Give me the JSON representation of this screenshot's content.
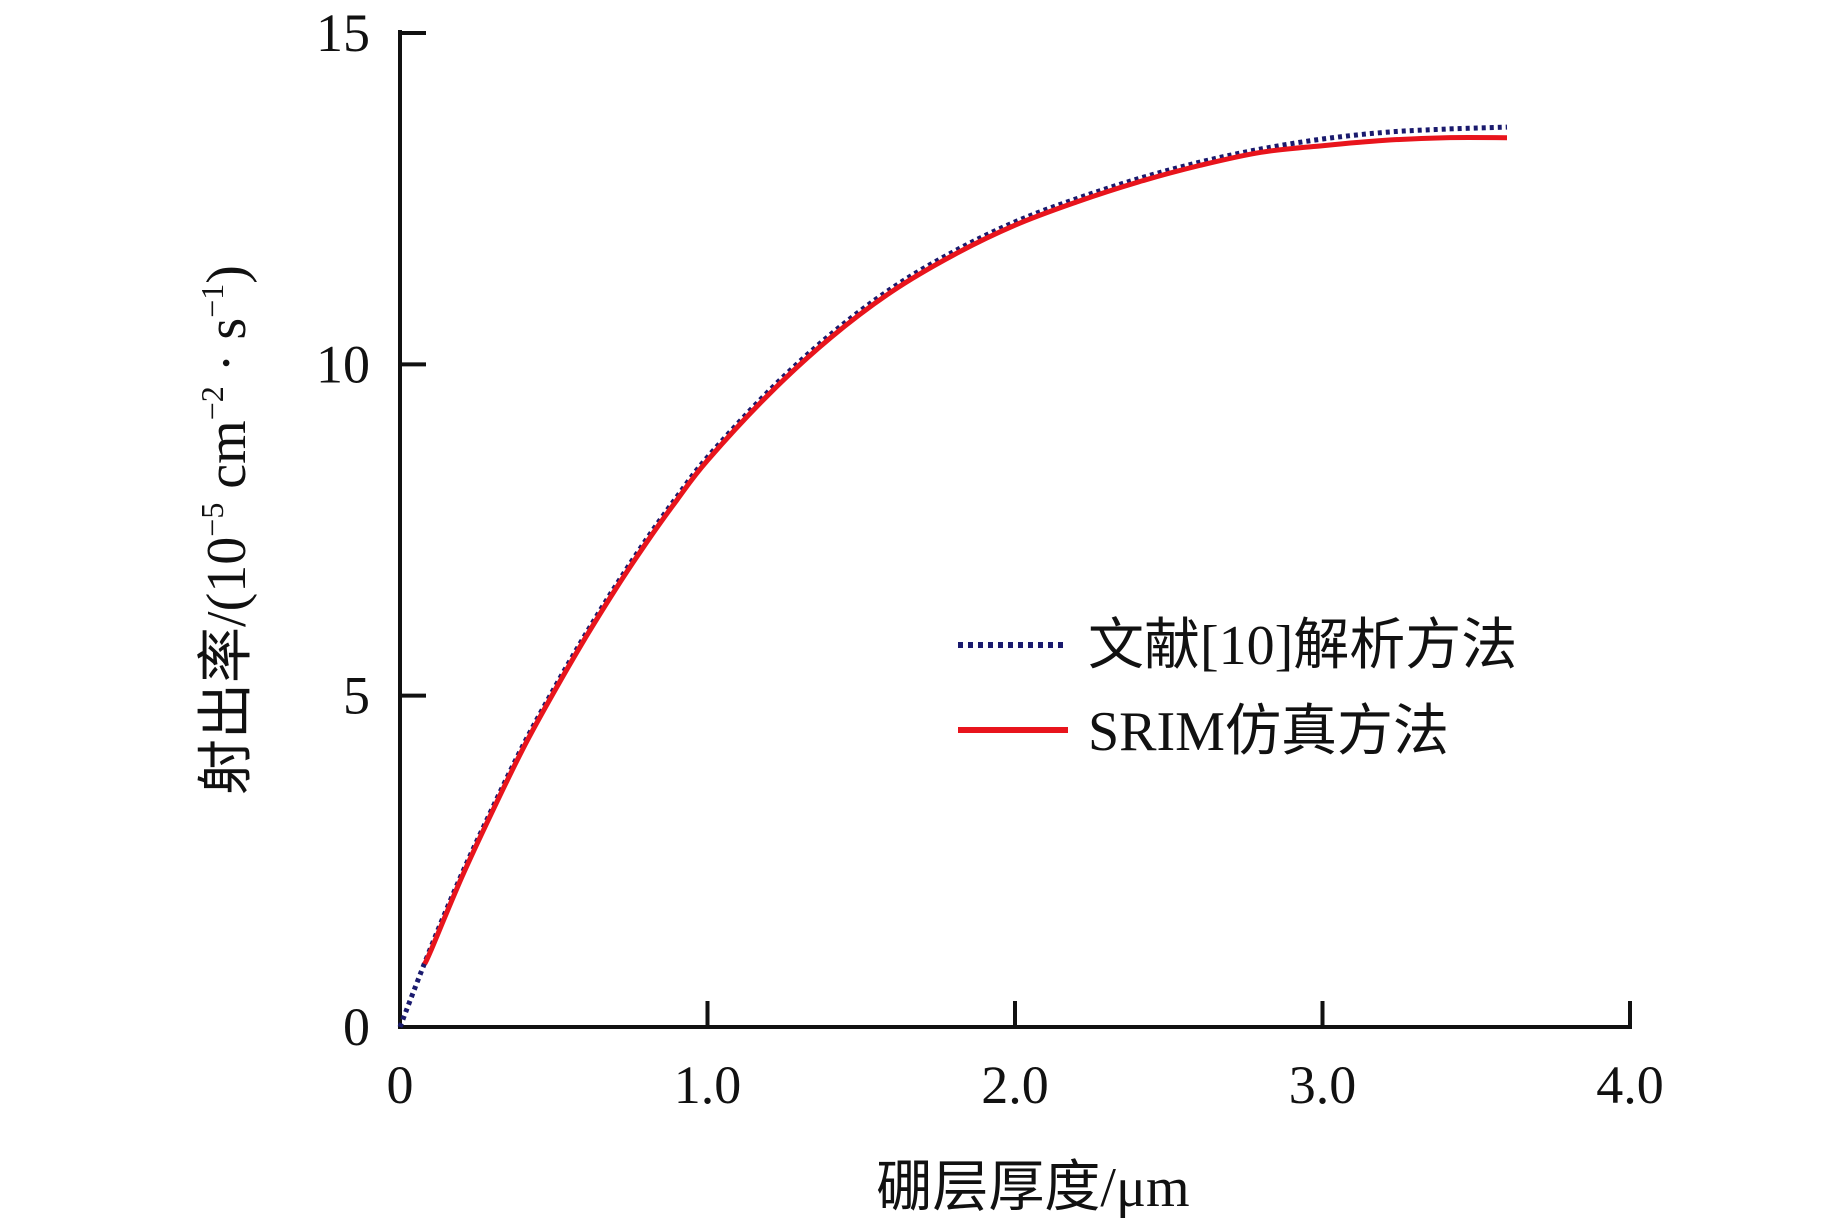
{
  "chart_data": {
    "type": "line",
    "xlabel": "硼层厚度/μm",
    "ylabel_main": "射出率/(10",
    "ylabel_exp1": "−5",
    "ylabel_mid": " cm",
    "ylabel_exp2": "−2",
    "ylabel_dot": " · s",
    "ylabel_exp3": "−1",
    "ylabel_end": ")",
    "xlim": [
      0,
      4.0
    ],
    "ylim": [
      0,
      15
    ],
    "xticks": [
      0,
      1.0,
      2.0,
      3.0,
      4.0
    ],
    "xtick_labels": [
      "0",
      "1.0",
      "2.0",
      "3.0",
      "4.0"
    ],
    "yticks": [
      0,
      5,
      10,
      15
    ],
    "ytick_labels": [
      "0",
      "5",
      "10",
      "15"
    ],
    "grid": false,
    "legend_position": "center-right",
    "series": [
      {
        "name": "文献[10]解析方法",
        "color": "#1a1a6e",
        "style": "dotted",
        "x": [
          0,
          0.1,
          0.2,
          0.3,
          0.4,
          0.5,
          0.6,
          0.7,
          0.8,
          0.9,
          1.0,
          1.2,
          1.4,
          1.6,
          1.8,
          2.0,
          2.2,
          2.4,
          2.6,
          2.8,
          3.0,
          3.2,
          3.4,
          3.6
        ],
        "y": [
          0,
          1.2,
          2.3,
          3.3,
          4.25,
          5.1,
          5.9,
          6.65,
          7.35,
          8.0,
          8.6,
          9.6,
          10.45,
          11.15,
          11.7,
          12.15,
          12.5,
          12.8,
          13.05,
          13.25,
          13.4,
          13.5,
          13.55,
          13.58
        ]
      },
      {
        "name": "SRIM仿真方法",
        "color": "#e8141c",
        "style": "solid",
        "x": [
          0.08,
          0.1,
          0.2,
          0.3,
          0.4,
          0.5,
          0.6,
          0.7,
          0.8,
          0.9,
          1.0,
          1.2,
          1.4,
          1.6,
          1.8,
          2.0,
          2.2,
          2.4,
          2.6,
          2.8,
          3.0,
          3.2,
          3.4,
          3.6
        ],
        "y": [
          0.95,
          1.15,
          2.25,
          3.25,
          4.2,
          5.05,
          5.85,
          6.6,
          7.3,
          7.95,
          8.55,
          9.55,
          10.4,
          11.1,
          11.65,
          12.1,
          12.45,
          12.75,
          13.0,
          13.2,
          13.3,
          13.38,
          13.42,
          13.42
        ]
      }
    ]
  }
}
